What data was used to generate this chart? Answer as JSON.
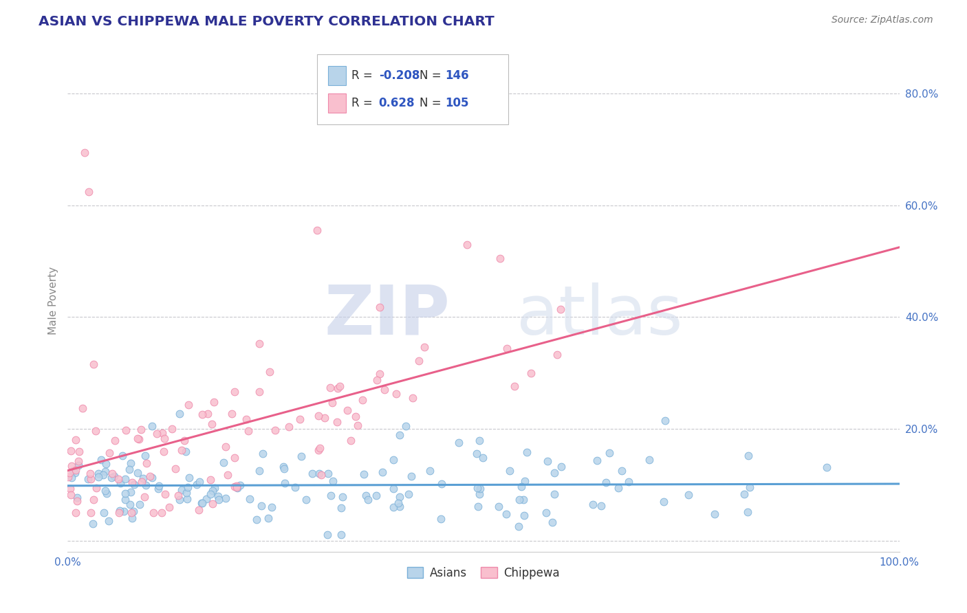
{
  "title": "ASIAN VS CHIPPEWA MALE POVERTY CORRELATION CHART",
  "source": "Source: ZipAtlas.com",
  "ylabel": "Male Poverty",
  "watermark_zip": "ZIP",
  "watermark_atlas": "atlas",
  "legend_label1": "Asians",
  "legend_label2": "Chippewa",
  "r1": -0.208,
  "n1": 146,
  "r2": 0.628,
  "n2": 105,
  "color_asian_face": "#b8d4ea",
  "color_asian_edge": "#7ab0d8",
  "color_chippewa_face": "#f9bfce",
  "color_chippewa_edge": "#ee88aa",
  "line_color_asian": "#5a9fd4",
  "line_color_chippewa": "#e8608a",
  "title_color": "#2e3192",
  "source_color": "#777777",
  "tick_color": "#4472c4",
  "watermark_color_zip": "#c5cfe8",
  "watermark_color_atlas": "#d5deed",
  "xlim": [
    0.0,
    1.0
  ],
  "ylim": [
    -0.02,
    0.88
  ],
  "y_ticks": [
    0.0,
    0.2,
    0.4,
    0.6,
    0.8
  ],
  "y_tick_labels": [
    "",
    "20.0%",
    "40.0%",
    "60.0%",
    "80.0%"
  ],
  "background_color": "#ffffff",
  "grid_color": "#c8c8cc",
  "legend_r_color": "#2e55c0",
  "legend_n_color": "#2e55c0",
  "legend_r_label": "#333333"
}
